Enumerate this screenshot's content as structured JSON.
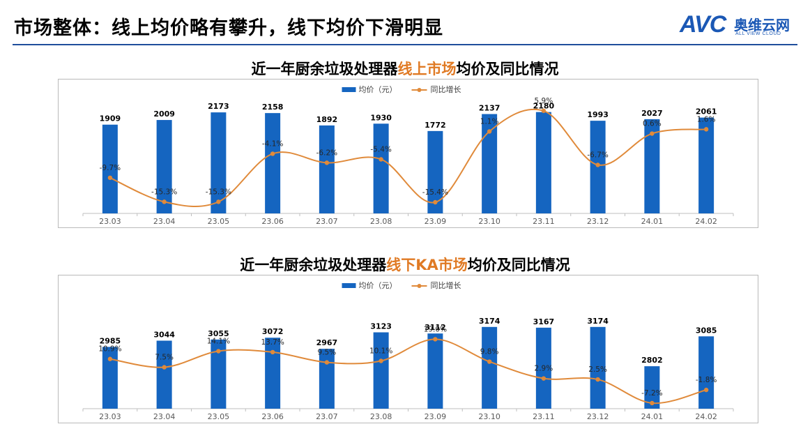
{
  "header": {
    "title": "市场整体：线上均价略有攀升，线下均价下滑明显",
    "logo_text": "AVC",
    "logo_cn": "奥维云网",
    "logo_en": "ALL VIEW CLOUD"
  },
  "colors": {
    "bar": "#1565c0",
    "line": "#e08a3a",
    "rule": "#1f4e9c",
    "highlight": "#e07a24"
  },
  "chart_data": [
    {
      "type": "bar",
      "title_parts": [
        "近一年厨余垃圾处理器",
        "线上市场",
        "均价及同比情况"
      ],
      "categories": [
        "23.03",
        "23.04",
        "23.05",
        "23.06",
        "23.07",
        "23.08",
        "23.09",
        "23.10",
        "23.11",
        "23.12",
        "24.01",
        "24.02"
      ],
      "series": [
        {
          "name": "均价（元）",
          "type": "bar",
          "axis": "left",
          "values": [
            1909,
            2009,
            2173,
            2158,
            1892,
            1930,
            1772,
            2137,
            2180,
            1993,
            2027,
            2061
          ],
          "labels": [
            "1909",
            "2009",
            "2173",
            "2158",
            "1892",
            "1930",
            "1772",
            "2137",
            "2180",
            "1993",
            "2027",
            "2061"
          ]
        },
        {
          "name": "同比增长",
          "type": "line",
          "axis": "right",
          "smooth": true,
          "values": [
            -9.7,
            -15.3,
            -15.3,
            -4.1,
            -6.2,
            -5.4,
            -15.4,
            1.1,
            5.9,
            -6.7,
            0.6,
            1.6
          ],
          "labels": [
            "-9.7%",
            "-15.3%",
            "-15.3%",
            "-4.1%",
            "-6.2%",
            "-5.4%",
            "-15.4%",
            "1.1%",
            "5.9%",
            "-6.7%",
            "0.6%",
            "1.6%"
          ]
        }
      ],
      "ylim": [
        0,
        2400
      ],
      "y2lim": [
        -18,
        8
      ],
      "legend": "top-center",
      "grid": false
    },
    {
      "type": "bar",
      "title_parts": [
        "近一年厨余垃圾处理器",
        "线下KA市场",
        "均价及同比情况"
      ],
      "categories": [
        "23.03",
        "23.04",
        "23.05",
        "23.06",
        "23.07",
        "23.08",
        "23.09",
        "23.10",
        "23.11",
        "23.12",
        "24.01",
        "24.02"
      ],
      "series": [
        {
          "name": "均价（元）",
          "type": "bar",
          "axis": "left",
          "values": [
            2985,
            3044,
            3055,
            3072,
            2967,
            3123,
            3112,
            3174,
            3167,
            3174,
            2802,
            3085
          ],
          "labels": [
            "2985",
            "3044",
            "3055",
            "3072",
            "2967",
            "3123",
            "3112",
            "3174",
            "3167",
            "3174",
            "2802",
            "3085"
          ]
        },
        {
          "name": "同比增长",
          "type": "line",
          "axis": "right",
          "smooth": true,
          "values": [
            10.9,
            7.5,
            14.1,
            13.7,
            9.5,
            10.1,
            19.0,
            9.8,
            2.9,
            2.5,
            -7.2,
            -1.8
          ],
          "labels": [
            "10.9%",
            "7.5%",
            "14.1%",
            "13.7%",
            "9.5%",
            "10.1%",
            "19.0%",
            "9.8%",
            "2.9%",
            "2.5%",
            "-7.2%",
            "-1.8%"
          ]
        }
      ],
      "ylim": [
        2400,
        3450
      ],
      "y2lim": [
        -9.5,
        36
      ],
      "legend": "top-center",
      "grid": false
    }
  ]
}
